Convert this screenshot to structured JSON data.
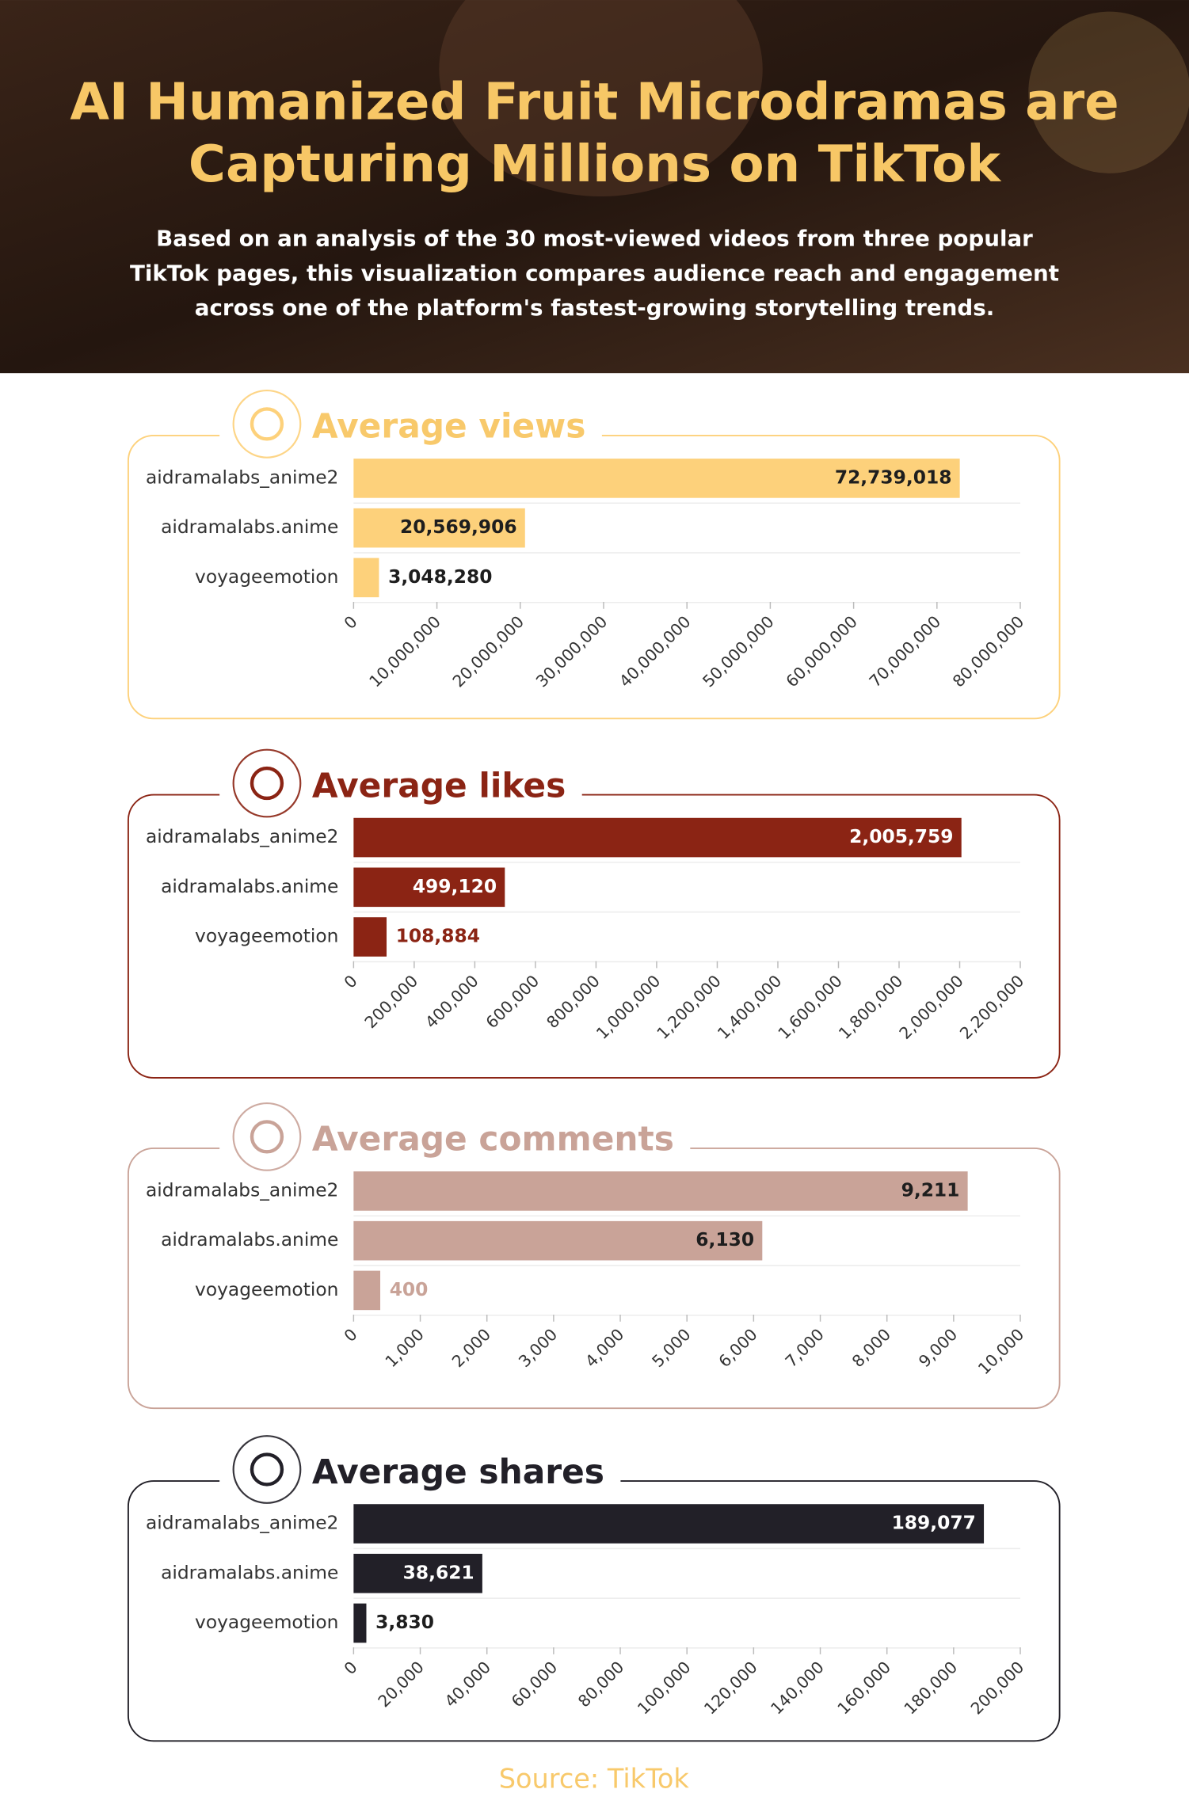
{
  "header": {
    "title": "AI Humanized Fruit Microdramas are Capturing Millions on TikTok",
    "subtitle": "Based on an analysis of the 30 most-viewed videos from three popular TikTok pages, this visualization compares audience reach and engagement across one of the platform's fastest-growing storytelling trends."
  },
  "source": "Source: TikTok",
  "chart_data": [
    {
      "type": "bar",
      "orientation": "horizontal",
      "title": "Average views",
      "title_color": "#f8c96b",
      "color": "#fdd17b",
      "label_colors": {
        "inside": "#1e1e1e",
        "outside": "#1e1e1e"
      },
      "categories": [
        "aidramalabs_anime2",
        "aidramalabs.anime",
        "voyageemotion"
      ],
      "values": [
        72739018,
        20569906,
        3048280
      ],
      "value_labels": [
        "72,739,018",
        "20,569,906",
        "3,048,280"
      ],
      "xlim": [
        0,
        80000000
      ],
      "xticks": [
        0,
        {
          "value": 10000000,
          "label": "10,000,000"
        },
        {
          "value": 20000000,
          "label": "20,000,000"
        },
        {
          "value": 30000000,
          "label": "30,000,000"
        },
        {
          "value": 40000000,
          "label": "40,000,000"
        },
        {
          "value": 50000000,
          "label": "50,000,000"
        },
        {
          "value": 60000000,
          "label": "60,000,000"
        },
        {
          "value": 70000000,
          "label": "70,000,000"
        },
        {
          "value": 80000000,
          "label": "80,000,000"
        }
      ]
    },
    {
      "type": "bar",
      "orientation": "horizontal",
      "title": "Average likes",
      "title_color": "#8b2414",
      "color": "#8b2414",
      "label_colors": {
        "inside": "#ffffff",
        "outside": "#8b2414"
      },
      "categories": [
        "aidramalabs_anime2",
        "aidramalabs.anime",
        "voyageemotion"
      ],
      "values": [
        2005759,
        499120,
        108884
      ],
      "value_labels": [
        "2,005,759",
        "499,120",
        "108,884"
      ],
      "xlim": [
        0,
        2200000
      ],
      "xticks": [
        0,
        {
          "value": 200000,
          "label": "200,000"
        },
        {
          "value": 400000,
          "label": "400,000"
        },
        {
          "value": 600000,
          "label": "600,000"
        },
        {
          "value": 800000,
          "label": "800,000"
        },
        {
          "value": 1000000,
          "label": "1,000,000"
        },
        {
          "value": 1200000,
          "label": "1,200,000"
        },
        {
          "value": 1400000,
          "label": "1,400,000"
        },
        {
          "value": 1600000,
          "label": "1,600,000"
        },
        {
          "value": 1800000,
          "label": "1,800,000"
        },
        {
          "value": 2000000,
          "label": "2,000,000"
        },
        {
          "value": 2200000,
          "label": "2,200,000"
        }
      ]
    },
    {
      "type": "bar",
      "orientation": "horizontal",
      "title": "Average comments",
      "title_color": "#c9a398",
      "color": "#c9a398",
      "label_colors": {
        "inside": "#1e1e1e",
        "outside": "#c9a398"
      },
      "categories": [
        "aidramalabs_anime2",
        "aidramalabs.anime",
        "voyageemotion"
      ],
      "values": [
        9211,
        6130,
        400
      ],
      "value_labels": [
        "9,211",
        "6,130",
        "400"
      ],
      "xlim": [
        0,
        10000
      ],
      "xticks": [
        0,
        {
          "value": 1000,
          "label": "1,000"
        },
        {
          "value": 2000,
          "label": "2,000"
        },
        {
          "value": 3000,
          "label": "3,000"
        },
        {
          "value": 4000,
          "label": "4,000"
        },
        {
          "value": 5000,
          "label": "5,000"
        },
        {
          "value": 6000,
          "label": "6,000"
        },
        {
          "value": 7000,
          "label": "7,000"
        },
        {
          "value": 8000,
          "label": "8,000"
        },
        {
          "value": 9000,
          "label": "9,000"
        },
        {
          "value": 10000,
          "label": "10,000"
        }
      ]
    },
    {
      "type": "bar",
      "orientation": "horizontal",
      "title": "Average shares",
      "title_color": "#222028",
      "color": "#222028",
      "label_colors": {
        "inside": "#ffffff",
        "outside": "#1e1e1e"
      },
      "categories": [
        "aidramalabs_anime2",
        "aidramalabs.anime",
        "voyageemotion"
      ],
      "values": [
        189077,
        38621,
        3830
      ],
      "value_labels": [
        "189,077",
        "38,621",
        "3,830"
      ],
      "xlim": [
        0,
        200000
      ],
      "xticks": [
        0,
        {
          "value": 20000,
          "label": "20,000"
        },
        {
          "value": 40000,
          "label": "40,000"
        },
        {
          "value": 60000,
          "label": "60,000"
        },
        {
          "value": 80000,
          "label": "80,000"
        },
        {
          "value": 100000,
          "label": "100,000"
        },
        {
          "value": 120000,
          "label": "120,000"
        },
        {
          "value": 140000,
          "label": "140,000"
        },
        {
          "value": 160000,
          "label": "160,000"
        },
        {
          "value": 180000,
          "label": "180,000"
        },
        {
          "value": 200000,
          "label": "200,000"
        }
      ]
    }
  ]
}
